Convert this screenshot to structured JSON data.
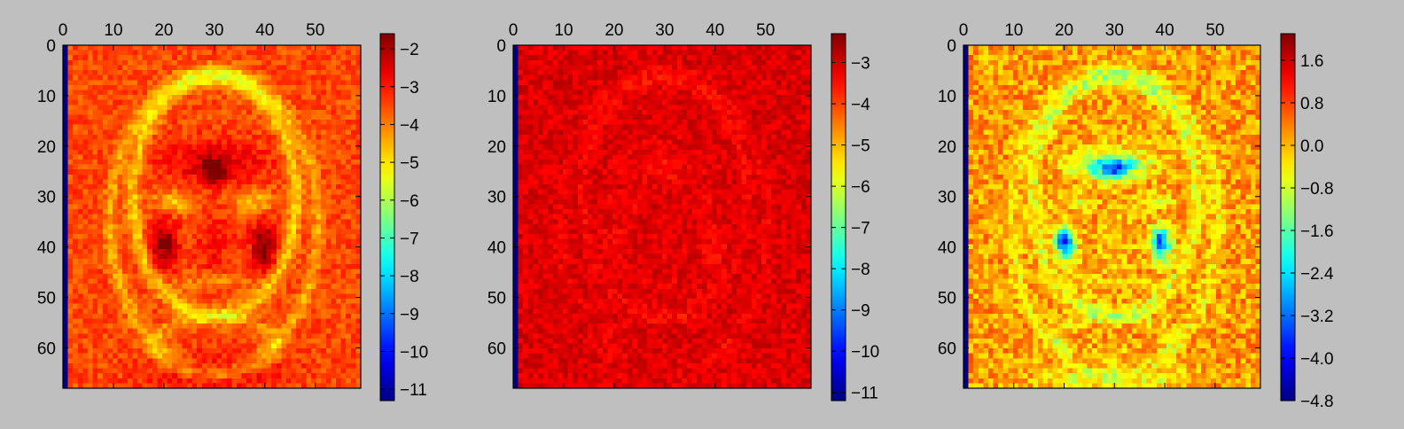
{
  "figure": {
    "background": "#bfbfbf"
  },
  "chart_data": [
    {
      "type": "heatmap",
      "title": "",
      "xlabel": "",
      "ylabel": "",
      "xlim": [
        0,
        59
      ],
      "ylim": [
        68,
        0
      ],
      "grid_cols": 60,
      "grid_rows": 69,
      "x_ticks": [
        "0",
        "10",
        "20",
        "30",
        "40",
        "50"
      ],
      "x_tick_values": [
        0,
        10,
        20,
        30,
        40,
        50
      ],
      "y_ticks": [
        "0",
        "10",
        "20",
        "30",
        "40",
        "50",
        "60"
      ],
      "y_tick_values": [
        0,
        10,
        20,
        30,
        40,
        50,
        60
      ],
      "colormap": "jet",
      "colorbar": {
        "vmin": -11.3,
        "vmax": -1.6,
        "ticks": [
          "−2",
          "−3",
          "−4",
          "−5",
          "−6",
          "−7",
          "−8",
          "−9",
          "−10",
          "−11"
        ],
        "tick_values": [
          -2,
          -3,
          -4,
          -5,
          -6,
          -7,
          -8,
          -9,
          -10,
          -11
        ]
      },
      "face_pattern": "strong",
      "base_value": -3.5
    },
    {
      "type": "heatmap",
      "title": "",
      "xlabel": "",
      "ylabel": "",
      "xlim": [
        0,
        59
      ],
      "ylim": [
        68,
        0
      ],
      "grid_cols": 60,
      "grid_rows": 69,
      "x_ticks": [
        "0",
        "10",
        "20",
        "30",
        "40",
        "50"
      ],
      "x_tick_values": [
        0,
        10,
        20,
        30,
        40,
        50
      ],
      "y_ticks": [
        "0",
        "10",
        "20",
        "30",
        "40",
        "50",
        "60"
      ],
      "y_tick_values": [
        0,
        10,
        20,
        30,
        40,
        50,
        60
      ],
      "colormap": "jet",
      "colorbar": {
        "vmin": -11.2,
        "vmax": -2.3,
        "ticks": [
          "−3",
          "−4",
          "−5",
          "−6",
          "−7",
          "−8",
          "−9",
          "−10",
          "−11"
        ],
        "tick_values": [
          -3,
          -4,
          -5,
          -6,
          -7,
          -8,
          -9,
          -10,
          -11
        ]
      },
      "face_pattern": "faint",
      "base_value": -3.1
    },
    {
      "type": "heatmap",
      "title": "",
      "xlabel": "",
      "ylabel": "",
      "xlim": [
        0,
        59
      ],
      "ylim": [
        68,
        0
      ],
      "grid_cols": 60,
      "grid_rows": 69,
      "x_ticks": [
        "0",
        "10",
        "20",
        "30",
        "40",
        "50"
      ],
      "x_tick_values": [
        0,
        10,
        20,
        30,
        40,
        50
      ],
      "y_ticks": [
        "0",
        "10",
        "20",
        "30",
        "40",
        "50",
        "60"
      ],
      "y_tick_values": [
        0,
        10,
        20,
        30,
        40,
        50,
        60
      ],
      "colormap": "jet",
      "colorbar": {
        "vmin": -4.8,
        "vmax": 2.1,
        "ticks": [
          "1.6",
          "0.8",
          "0.0",
          "−0.8",
          "−1.6",
          "−2.4",
          "−3.2",
          "−4.0",
          "−4.8"
        ],
        "tick_values": [
          1.6,
          0.8,
          0.0,
          -0.8,
          -1.6,
          -2.4,
          -3.2,
          -4.0,
          -4.8
        ]
      },
      "face_pattern": "difference",
      "base_value": 0.2
    }
  ]
}
